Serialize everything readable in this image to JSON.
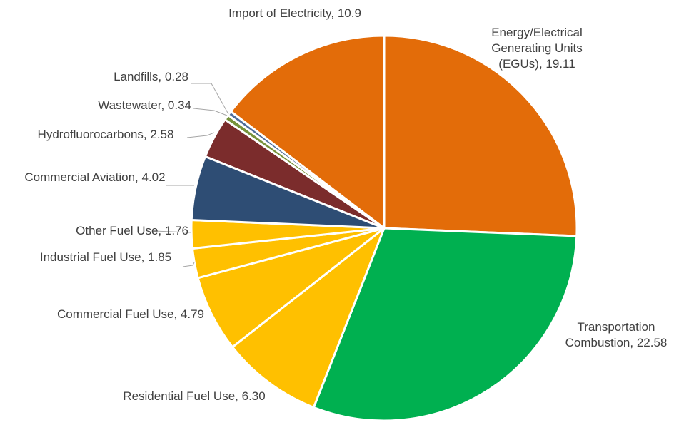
{
  "chart_data": {
    "type": "pie",
    "categories": [
      "Energy/Electrical Generating Units (EGUs),",
      "Transportation Combustion,",
      "Residential Fuel Use,",
      "Commercial Fuel Use,",
      "Industrial Fuel Use,",
      "Other Fuel Use,",
      "Commercial Aviation,",
      "Hydrofluorocarbons,",
      "Wastewater,",
      "Landfills,",
      "Import of Electricity,"
    ],
    "values": [
      19.11,
      22.58,
      6.3,
      4.79,
      1.85,
      1.76,
      4.02,
      2.58,
      0.34,
      0.28,
      10.9
    ],
    "value_labels": [
      "19.11",
      "22.58",
      "6.30",
      "4.79",
      "1.85",
      "1.76",
      "4.02",
      "2.58",
      "0.34",
      "0.28",
      "10.9"
    ],
    "colors": [
      "#E36C09",
      "#00B050",
      "#FFC000",
      "#FFC000",
      "#FFC000",
      "#FFC000",
      "#2E4D74",
      "#7B2C2C",
      "#77933C",
      "#4F6D9A",
      "#E36C09"
    ]
  }
}
